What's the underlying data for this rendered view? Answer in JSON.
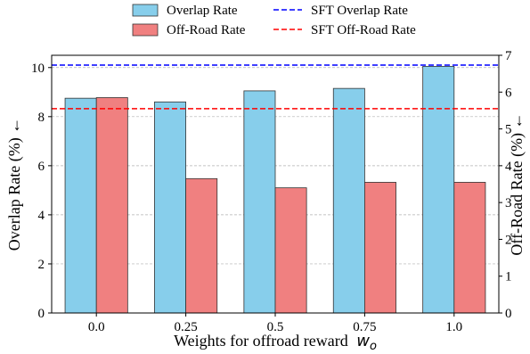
{
  "chart_data": {
    "type": "bar",
    "categories": [
      "0.0",
      "0.25",
      "0.5",
      "0.75",
      "1.0"
    ],
    "series": [
      {
        "name": "Overlap Rate",
        "axis": "left",
        "color": "#87ceeb",
        "values": [
          8.75,
          8.6,
          9.05,
          9.15,
          10.05
        ]
      },
      {
        "name": "Off-Road Rate",
        "axis": "right",
        "color": "#f08080",
        "values": [
          5.85,
          3.65,
          3.4,
          3.55,
          3.55
        ]
      }
    ],
    "reference_lines": [
      {
        "name": "SFT Overlap Rate",
        "axis": "left",
        "value": 10.1,
        "color": "#0000ff",
        "style": "dashed"
      },
      {
        "name": "SFT Off-Road Rate",
        "axis": "right",
        "value": 5.55,
        "color": "#ff0000",
        "style": "dashed"
      }
    ],
    "xlabel": "Weights for offroad reward",
    "xlabel_symbol": "w",
    "xlabel_subscript": "o",
    "ylabel_left": "Overlap Rate (%) ←",
    "ylabel_right": "Off-Road Rate (%) ←",
    "ylim_left": [
      0,
      10.5
    ],
    "ylim_right": [
      0,
      7
    ],
    "yticks_left": [
      0,
      2,
      4,
      6,
      8,
      10
    ],
    "yticks_right": [
      0,
      1,
      2,
      3,
      4,
      5,
      6,
      7
    ],
    "grid": "horizontal dashed",
    "legend_position": "top-center"
  }
}
